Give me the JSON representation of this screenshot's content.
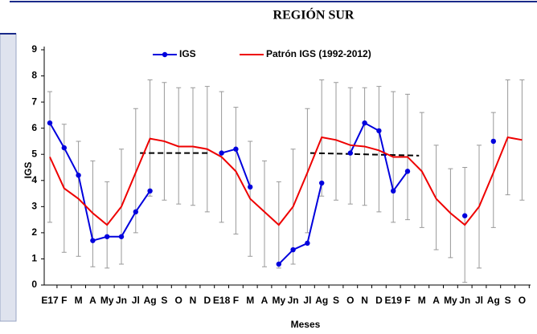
{
  "chart_data": {
    "type": "line",
    "title": "REGIÓN SUR",
    "x_label": "Meses",
    "y_label": "IGS",
    "categories": [
      "E17",
      "F",
      "M",
      "A",
      "My",
      "Jn",
      "Jl",
      "Ag",
      "S",
      "O",
      "N",
      "D",
      "E18",
      "F",
      "M",
      "A",
      "My",
      "Jn",
      "Jl",
      "Ag",
      "S",
      "O",
      "N",
      "D",
      "E19",
      "F",
      "M",
      "A",
      "My",
      "Jn",
      "Jl",
      "Ag",
      "S",
      "O"
    ],
    "ylim": [
      0,
      9
    ],
    "yticks": [
      0,
      1,
      2,
      3,
      4,
      5,
      6,
      7,
      8,
      9
    ],
    "series": [
      {
        "name": "IGS",
        "color": "#0000dd",
        "marker": true,
        "values": [
          6.2,
          5.25,
          4.2,
          1.7,
          1.85,
          1.85,
          2.8,
          3.6,
          null,
          null,
          null,
          null,
          5.05,
          5.2,
          3.75,
          null,
          0.8,
          1.35,
          1.6,
          3.9,
          null,
          5.05,
          6.2,
          5.9,
          3.6,
          4.35,
          null,
          null,
          null,
          2.65,
          null,
          5.5,
          null,
          null
        ]
      },
      {
        "name": "Patrón IGS (1992-2012)",
        "color": "#ee0000",
        "marker": false,
        "values": [
          4.9,
          3.7,
          3.3,
          2.75,
          2.3,
          3.0,
          4.3,
          5.6,
          5.5,
          5.3,
          5.3,
          5.2,
          4.9,
          4.35,
          3.3,
          2.8,
          2.3,
          3.0,
          4.3,
          5.65,
          5.55,
          5.35,
          5.3,
          5.15,
          4.9,
          4.9,
          4.35,
          3.3,
          2.75,
          2.3,
          3.0,
          4.3,
          5.65,
          5.55
        ],
        "error_low": [
          2.4,
          1.25,
          1.1,
          0.7,
          0.65,
          0.8,
          2.0,
          3.4,
          3.25,
          3.1,
          3.05,
          2.8,
          2.4,
          1.95,
          1.1,
          0.7,
          0.65,
          0.8,
          2.0,
          3.4,
          3.25,
          3.1,
          3.05,
          2.8,
          2.4,
          2.5,
          2.2,
          1.35,
          1.05,
          0.1,
          0.65,
          2.2,
          3.45,
          3.25
        ],
        "error_high": [
          7.4,
          6.15,
          5.5,
          4.75,
          3.95,
          5.2,
          6.75,
          7.85,
          7.75,
          7.55,
          7.55,
          7.6,
          7.4,
          6.8,
          5.5,
          4.75,
          3.95,
          5.2,
          6.75,
          7.85,
          7.75,
          7.55,
          7.55,
          7.6,
          7.4,
          7.3,
          6.6,
          5.35,
          4.45,
          4.5,
          5.35,
          6.6,
          7.85,
          7.85
        ]
      }
    ],
    "reference_lines": [
      {
        "from": 6.3,
        "to": 11.2,
        "start": 5.05,
        "end": 5.05
      },
      {
        "from": 18.2,
        "to": 25.8,
        "start": 5.05,
        "end": 4.95
      }
    ]
  }
}
